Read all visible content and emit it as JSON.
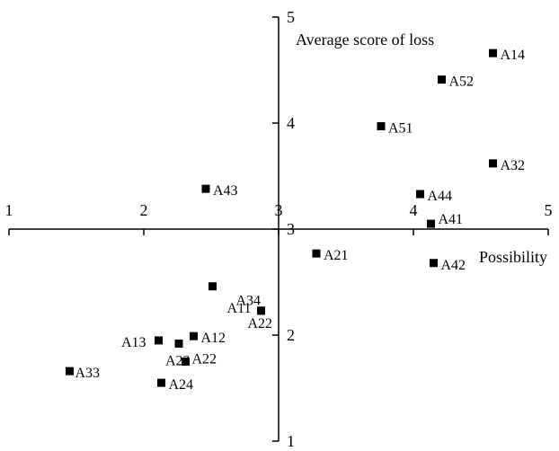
{
  "chart_data": {
    "type": "scatter",
    "xlabel": "Possibility",
    "ylabel": "Average score of loss",
    "xlim": [
      1,
      5
    ],
    "ylim": [
      1,
      5
    ],
    "x_axis_crosses_y_at": 3,
    "y_axis_crosses_x_at": 3,
    "x_ticks": [
      1,
      2,
      3,
      4,
      5
    ],
    "y_ticks": [
      1,
      2,
      3,
      4,
      5
    ],
    "x_tick_labels": [
      "1",
      "2",
      "3",
      "4",
      "5"
    ],
    "y_tick_labels": [
      "1",
      "2",
      "3",
      "4",
      "5"
    ],
    "grid": false,
    "legend": "none",
    "marker": "square",
    "marker_color": "#000000",
    "points": [
      {
        "label": "A14",
        "x": 4.59,
        "y": 4.66
      },
      {
        "label": "A52",
        "x": 4.21,
        "y": 4.41
      },
      {
        "label": "A51",
        "x": 3.76,
        "y": 3.97
      },
      {
        "label": "A32",
        "x": 4.59,
        "y": 3.62
      },
      {
        "label": "A44",
        "x": 4.05,
        "y": 3.33
      },
      {
        "label": "A43",
        "x": 2.46,
        "y": 3.38
      },
      {
        "label": "A41",
        "x": 4.13,
        "y": 3.05
      },
      {
        "label": "A21",
        "x": 3.28,
        "y": 2.77
      },
      {
        "label": "A42",
        "x": 4.15,
        "y": 2.68
      },
      {
        "label": "A34",
        "x": 2.51,
        "y": 2.46
      },
      {
        "label": "A11",
        "x": 2.87,
        "y": 2.23
      },
      {
        "label": "A22",
        "x": 2.87,
        "y": 2.23
      },
      {
        "label": "A12",
        "x": 2.37,
        "y": 1.99
      },
      {
        "label": "A13",
        "x": 2.11,
        "y": 1.95
      },
      {
        "label": "A23",
        "x": 2.26,
        "y": 1.92
      },
      {
        "label": "A22",
        "x": 2.31,
        "y": 1.75
      },
      {
        "label": "A24",
        "x": 2.13,
        "y": 1.55
      },
      {
        "label": "A33",
        "x": 1.45,
        "y": 1.66
      }
    ]
  }
}
